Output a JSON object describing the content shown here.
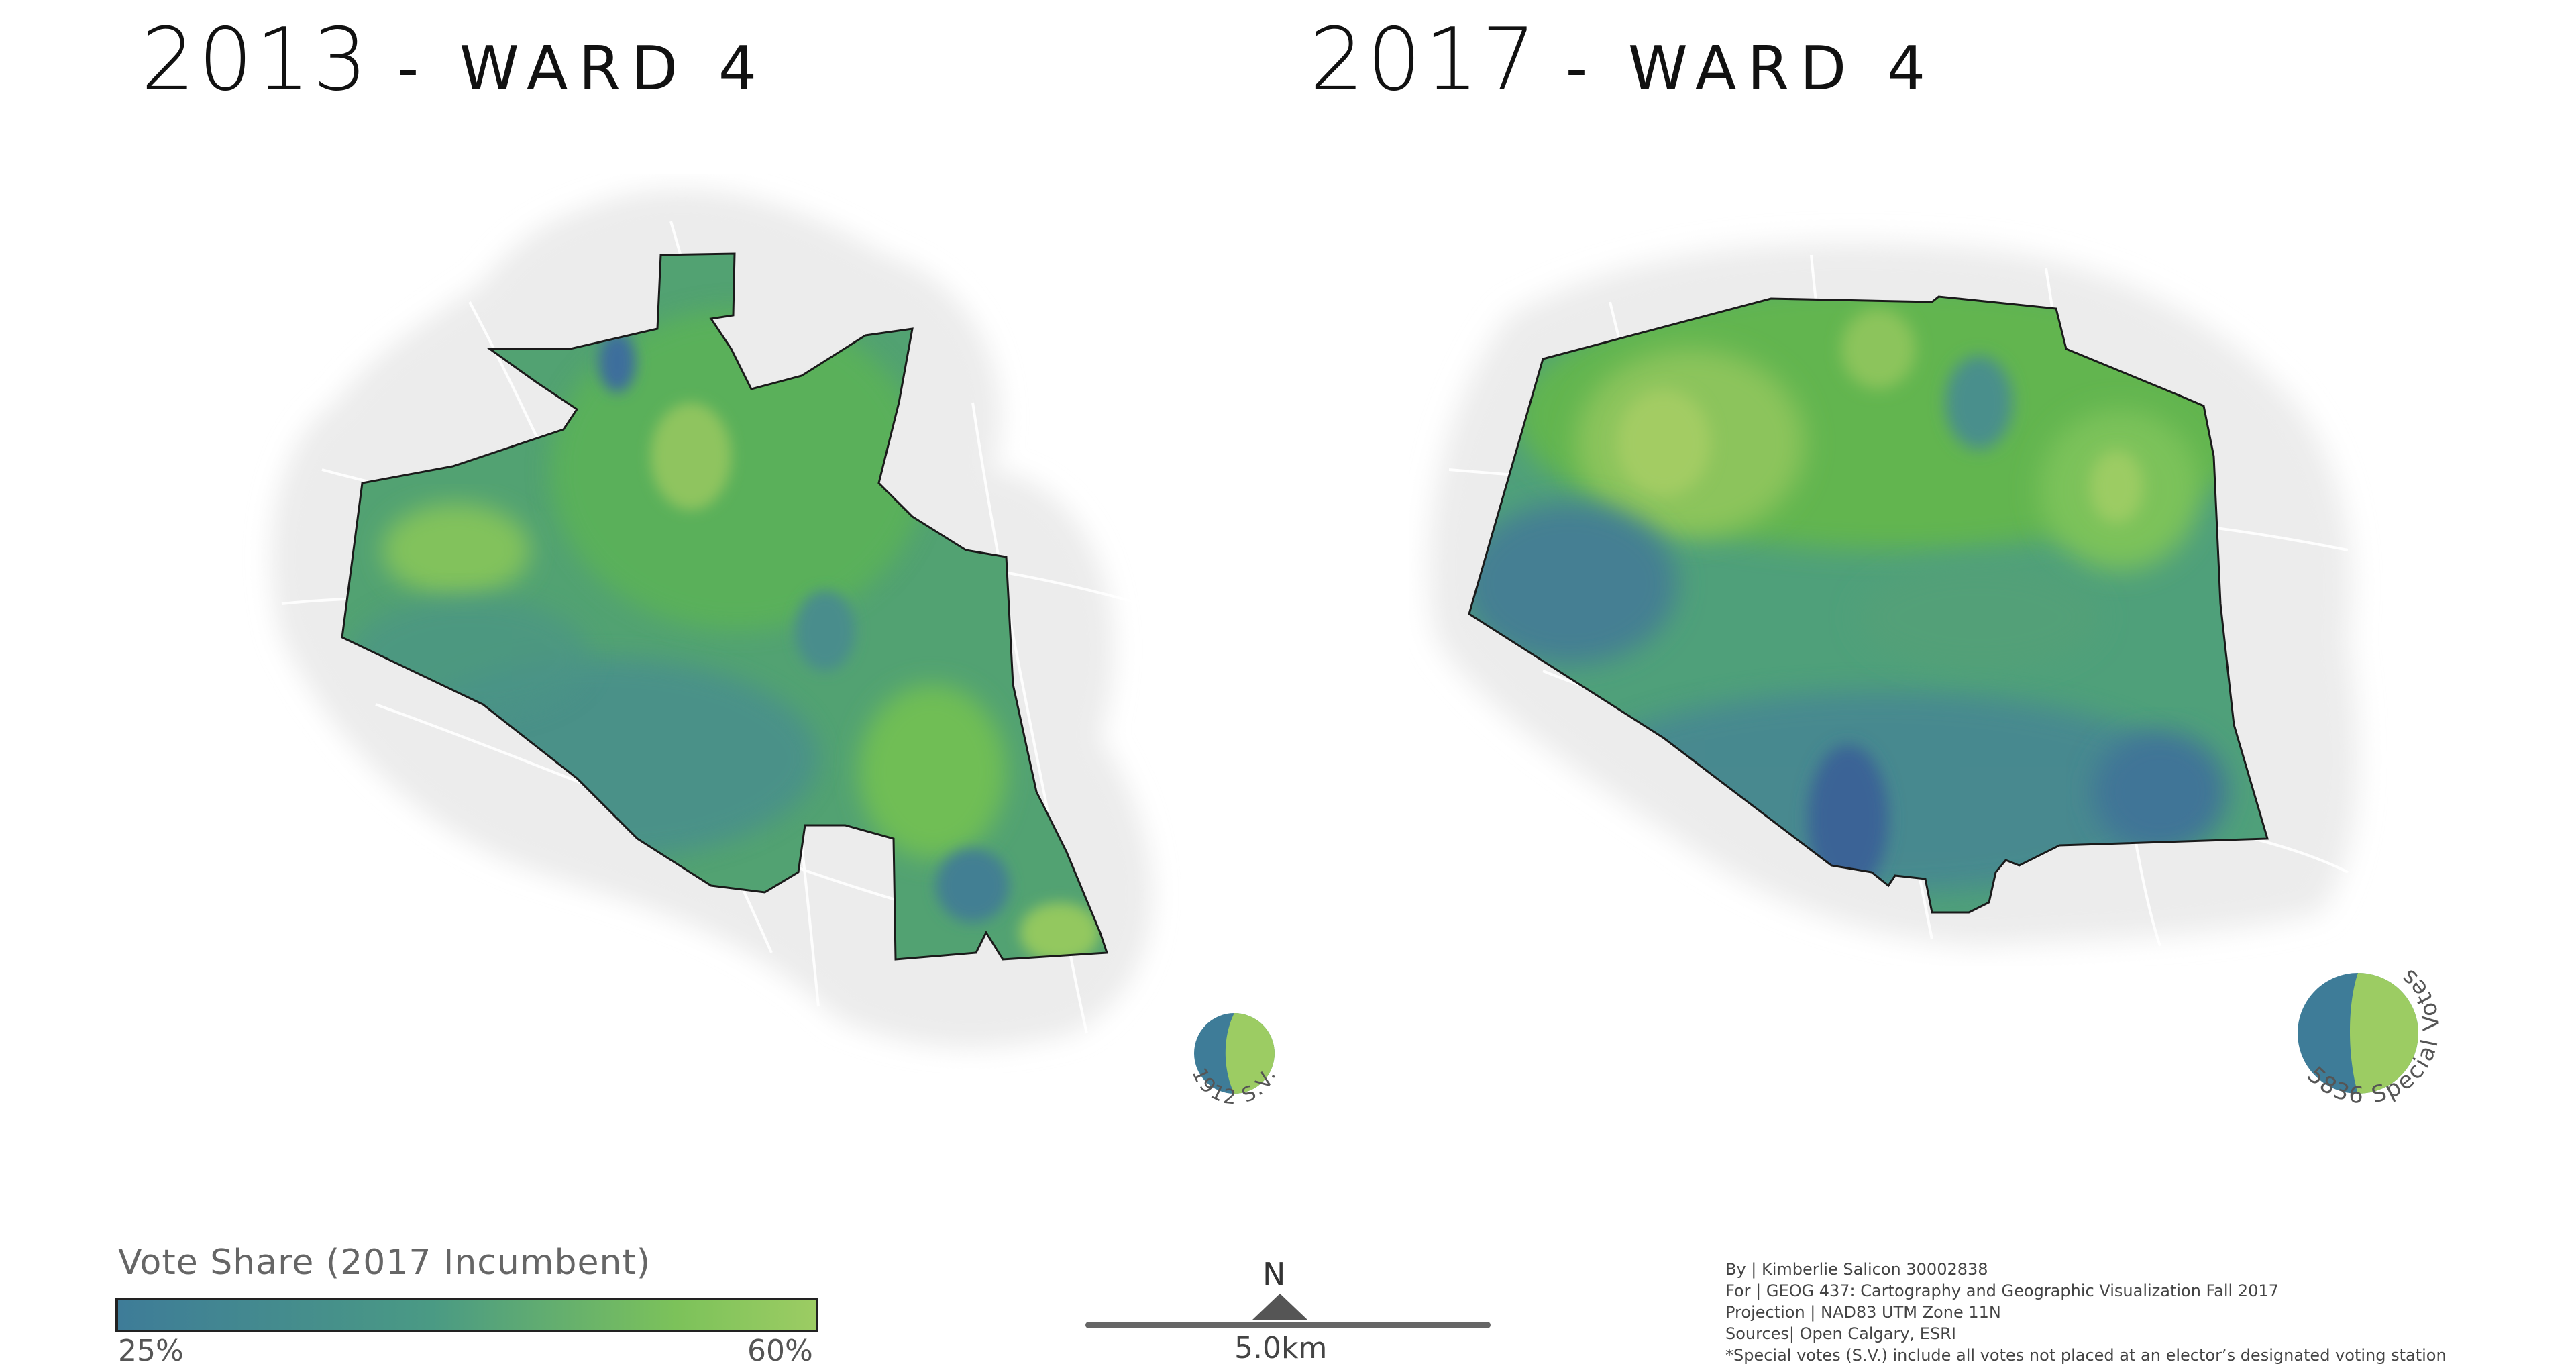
{
  "titles": {
    "left": {
      "year": "2013",
      "ward": "- WARD 4"
    },
    "right": {
      "year": "2017",
      "ward": "- WARD 4"
    }
  },
  "special_votes": {
    "left_label": "1912 S.V.",
    "right_label": "5836 Special Votes"
  },
  "legend": {
    "title": "Vote Share (2017 Incumbent)",
    "min_label": "25%",
    "max_label": "60%"
  },
  "north_arrow": {
    "label": "N"
  },
  "scale_bar": {
    "label": "5.0km"
  },
  "credits": [
    "By | Kimberlie Salicon 30002838",
    "For | GEOG 437: Cartography and Geographic Visualization Fall 2017",
    "Projection | NAD83 UTM Zone 11N",
    "Sources| Open Calgary, ESRI",
    "*Special votes (S.V.) include all votes not placed at an elector’s designated voting station"
  ],
  "colors": {
    "low": "#3e7c98",
    "mid": "#4aa37a",
    "high": "#9ccc63",
    "basemap": "#e6e6e6",
    "boundary": "#1a1a1a"
  }
}
